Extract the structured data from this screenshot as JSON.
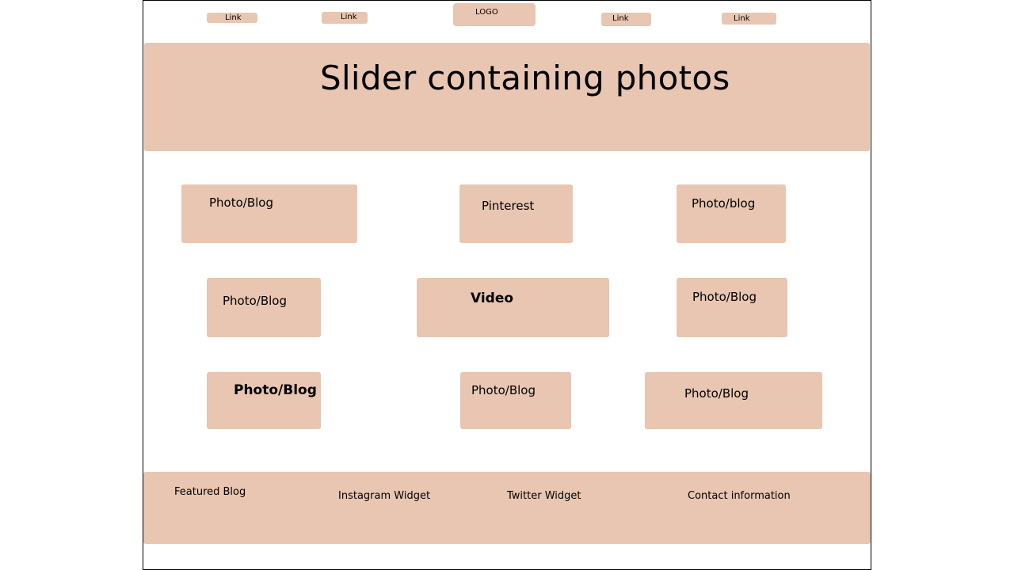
{
  "nav": {
    "link_1": "Link",
    "link_2": "Link",
    "logo": "LOGO",
    "link_3": "Link",
    "link_4": "Link"
  },
  "slider": {
    "title": "Slider containing photos"
  },
  "tiles": {
    "row1": [
      "Photo/Blog",
      "Pinterest",
      "Photo/blog"
    ],
    "row2": [
      "Photo/Blog",
      "Video",
      "Photo/Blog"
    ],
    "row3": [
      "Photo/Blog",
      "Photo/Blog",
      "Photo/Blog"
    ]
  },
  "footer": {
    "featured": "Featured Blog",
    "instagram": "Instagram Widget",
    "twitter": "Twitter Widget",
    "contact": "Contact information"
  },
  "colors": {
    "box_fill": "#e8c6b1",
    "frame_border": "#000000"
  }
}
